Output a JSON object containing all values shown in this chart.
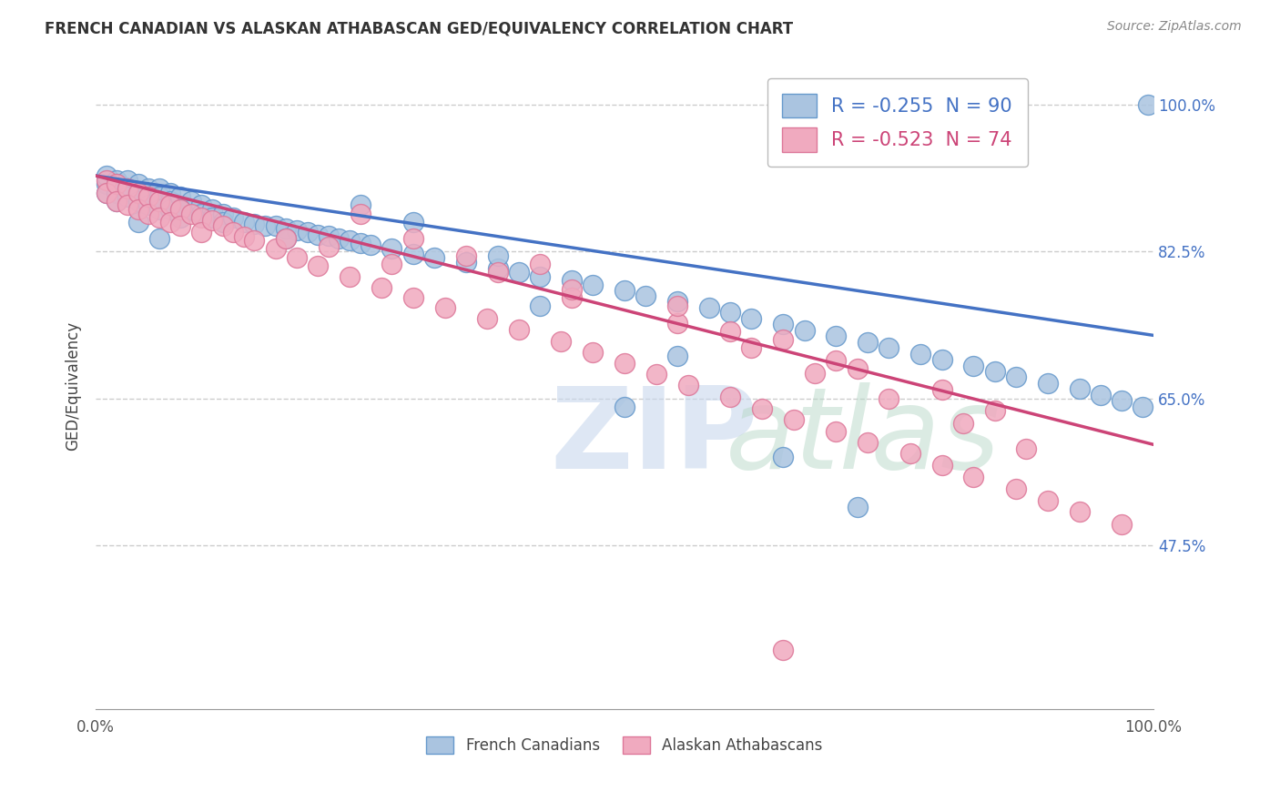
{
  "title": "FRENCH CANADIAN VS ALASKAN ATHABASCAN GED/EQUIVALENCY CORRELATION CHART",
  "source": "Source: ZipAtlas.com",
  "ylabel": "GED/Equivalency",
  "ytick_labels": [
    "100.0%",
    "82.5%",
    "65.0%",
    "47.5%"
  ],
  "ytick_values": [
    1.0,
    0.825,
    0.65,
    0.475
  ],
  "xlim": [
    0.0,
    1.0
  ],
  "ylim": [
    0.28,
    1.05
  ],
  "blue_R": -0.255,
  "blue_N": 90,
  "pink_R": -0.523,
  "pink_N": 74,
  "blue_color": "#aac4e0",
  "pink_color": "#f0aabf",
  "blue_edge_color": "#6699cc",
  "pink_edge_color": "#dd7799",
  "blue_line_color": "#4472c4",
  "pink_line_color": "#cc4477",
  "legend_label_blue": "French Canadians",
  "legend_label_pink": "Alaskan Athabascans",
  "blue_line_start_y": 0.915,
  "blue_line_end_y": 0.725,
  "pink_line_start_y": 0.915,
  "pink_line_end_y": 0.595,
  "blue_scatter_x": [
    0.01,
    0.01,
    0.01,
    0.02,
    0.02,
    0.02,
    0.02,
    0.03,
    0.03,
    0.03,
    0.04,
    0.04,
    0.04,
    0.05,
    0.05,
    0.05,
    0.06,
    0.06,
    0.06,
    0.07,
    0.07,
    0.07,
    0.08,
    0.08,
    0.08,
    0.09,
    0.09,
    0.1,
    0.1,
    0.11,
    0.11,
    0.12,
    0.12,
    0.13,
    0.14,
    0.15,
    0.16,
    0.17,
    0.18,
    0.19,
    0.2,
    0.21,
    0.22,
    0.23,
    0.24,
    0.25,
    0.26,
    0.28,
    0.3,
    0.32,
    0.35,
    0.38,
    0.4,
    0.42,
    0.45,
    0.47,
    0.5,
    0.52,
    0.55,
    0.58,
    0.6,
    0.62,
    0.65,
    0.67,
    0.7,
    0.73,
    0.75,
    0.78,
    0.8,
    0.83,
    0.85,
    0.87,
    0.9,
    0.93,
    0.95,
    0.97,
    0.99,
    0.995,
    0.5,
    0.38,
    0.42,
    0.55,
    0.65,
    0.72,
    0.25,
    0.3,
    0.18,
    0.08,
    0.06,
    0.04
  ],
  "blue_scatter_y": [
    0.905,
    0.915,
    0.895,
    0.91,
    0.905,
    0.895,
    0.885,
    0.91,
    0.9,
    0.89,
    0.905,
    0.895,
    0.885,
    0.9,
    0.89,
    0.88,
    0.9,
    0.89,
    0.875,
    0.895,
    0.885,
    0.875,
    0.89,
    0.875,
    0.865,
    0.885,
    0.875,
    0.88,
    0.87,
    0.875,
    0.865,
    0.87,
    0.86,
    0.865,
    0.86,
    0.858,
    0.855,
    0.855,
    0.852,
    0.85,
    0.848,
    0.845,
    0.843,
    0.84,
    0.838,
    0.835,
    0.833,
    0.828,
    0.822,
    0.818,
    0.812,
    0.805,
    0.8,
    0.795,
    0.79,
    0.785,
    0.778,
    0.772,
    0.765,
    0.758,
    0.752,
    0.745,
    0.738,
    0.731,
    0.724,
    0.717,
    0.71,
    0.703,
    0.696,
    0.689,
    0.682,
    0.675,
    0.668,
    0.661,
    0.654,
    0.647,
    0.64,
    1.0,
    0.64,
    0.82,
    0.76,
    0.7,
    0.58,
    0.52,
    0.88,
    0.86,
    0.84,
    0.875,
    0.84,
    0.86
  ],
  "pink_scatter_x": [
    0.01,
    0.01,
    0.02,
    0.02,
    0.03,
    0.03,
    0.04,
    0.04,
    0.05,
    0.05,
    0.06,
    0.06,
    0.07,
    0.07,
    0.08,
    0.08,
    0.09,
    0.1,
    0.1,
    0.11,
    0.12,
    0.13,
    0.14,
    0.15,
    0.17,
    0.19,
    0.21,
    0.24,
    0.27,
    0.3,
    0.33,
    0.37,
    0.4,
    0.44,
    0.47,
    0.5,
    0.53,
    0.56,
    0.6,
    0.63,
    0.66,
    0.7,
    0.73,
    0.77,
    0.8,
    0.83,
    0.87,
    0.9,
    0.93,
    0.97,
    0.25,
    0.3,
    0.38,
    0.45,
    0.55,
    0.62,
    0.68,
    0.75,
    0.82,
    0.88,
    0.35,
    0.45,
    0.6,
    0.7,
    0.8,
    0.55,
    0.65,
    0.42,
    0.72,
    0.85,
    0.18,
    0.22,
    0.28,
    0.65
  ],
  "pink_scatter_y": [
    0.91,
    0.895,
    0.905,
    0.885,
    0.9,
    0.88,
    0.895,
    0.875,
    0.89,
    0.87,
    0.885,
    0.865,
    0.88,
    0.86,
    0.875,
    0.855,
    0.87,
    0.865,
    0.848,
    0.862,
    0.855,
    0.848,
    0.842,
    0.838,
    0.828,
    0.818,
    0.808,
    0.795,
    0.782,
    0.77,
    0.758,
    0.745,
    0.732,
    0.718,
    0.705,
    0.692,
    0.679,
    0.666,
    0.652,
    0.638,
    0.625,
    0.61,
    0.598,
    0.584,
    0.57,
    0.556,
    0.542,
    0.528,
    0.515,
    0.5,
    0.87,
    0.84,
    0.8,
    0.77,
    0.74,
    0.71,
    0.68,
    0.65,
    0.62,
    0.59,
    0.82,
    0.78,
    0.73,
    0.695,
    0.66,
    0.76,
    0.72,
    0.81,
    0.685,
    0.635,
    0.84,
    0.83,
    0.81,
    0.35
  ]
}
